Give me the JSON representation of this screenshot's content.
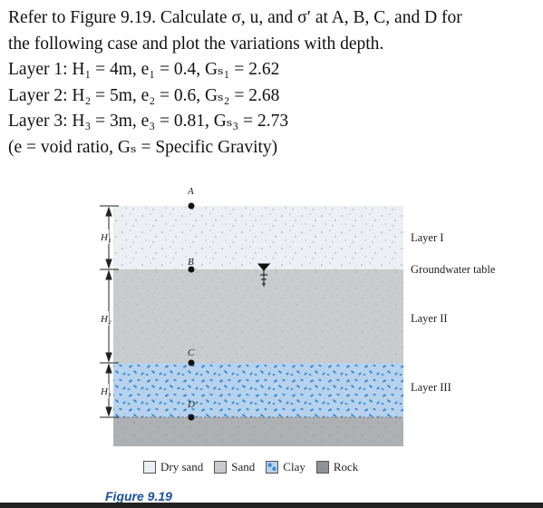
{
  "problem": {
    "intro_line1": "Refer to Figure 9.19. Calculate σ, u, and σ′ at A, B, C, and D for",
    "intro_line2": "the following case and plot the variations with depth.",
    "layer1": "Layer 1: H₁ = 4m, e₁ = 0.4, Gₛ₁ = 2.62",
    "layer2": "Layer 2: H₂ = 5m, e₂ = 0.6, Gₛ₂ = 2.68",
    "layer3": "Layer 3: H₃ = 3m, e₃ = 0.81, Gₛ₃ = 2.73",
    "definition": "(e = void ratio, Gₛ = Specific Gravity)"
  },
  "figure": {
    "points": {
      "a": "A",
      "b": "B",
      "c": "C",
      "d": "D"
    },
    "heights": {
      "h1": "H₁",
      "h2": "H₂",
      "h3": "H₃"
    },
    "right_labels": {
      "layer1": "Layer I",
      "gwt": "Groundwater table",
      "layer2": "Layer II",
      "layer3": "Layer III"
    },
    "legend": {
      "dry_sand": "Dry sand",
      "sand": "Sand",
      "clay": "Clay",
      "rock": "Rock"
    },
    "caption": "Figure 9.19",
    "colors": {
      "dry_sand": "#eceff3",
      "sand": "#c9cbcd",
      "clay": "#b7d2ec",
      "clay_dots": "#3f8fd4",
      "rock": "#aeb1b4"
    }
  }
}
